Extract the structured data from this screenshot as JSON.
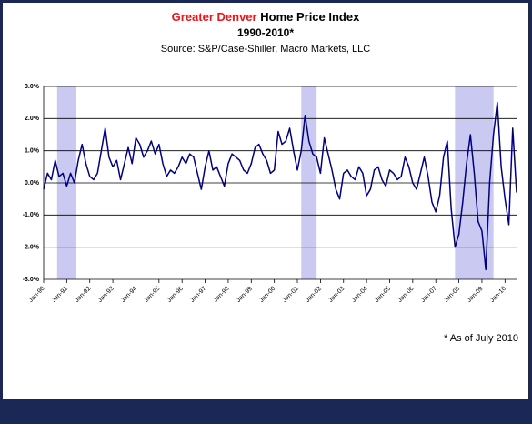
{
  "chart_data": {
    "type": "line",
    "title_highlight": "Greater Denver",
    "title": "Home Price Index",
    "subtitle": "1990-2010*",
    "source": "Source: S&P/Case-Shiller, Macro Markets, LLC",
    "note": "* As of July 2010",
    "title_highlight_color": "#e8151b",
    "x": [
      0,
      2,
      4,
      6,
      8,
      10,
      12,
      14,
      16,
      18,
      20,
      22,
      24,
      26,
      28,
      30,
      32,
      34,
      36,
      38,
      40,
      42,
      44,
      46,
      48,
      50,
      52,
      54,
      56,
      58,
      60,
      62,
      64,
      66,
      68,
      70,
      72,
      74,
      76,
      78,
      80,
      82,
      84,
      86,
      88,
      90,
      92,
      94,
      96,
      98,
      100,
      102,
      104,
      106,
      108,
      110,
      112,
      114,
      116,
      118,
      120,
      122,
      124,
      126,
      128,
      130,
      132,
      134,
      136,
      138,
      140,
      142,
      144,
      146,
      148,
      150,
      152,
      154,
      156,
      158,
      160,
      162,
      164,
      166,
      168,
      170,
      172,
      174,
      176,
      178,
      180,
      182,
      184,
      186,
      188,
      190,
      192,
      194,
      196,
      198,
      200,
      202,
      204,
      206,
      208,
      210,
      212,
      214,
      216,
      218,
      220,
      222,
      224,
      226,
      228,
      230,
      232,
      234,
      236,
      238,
      240,
      242,
      244,
      246
    ],
    "series": [
      {
        "name": "Greater Denver",
        "color": "#000080",
        "values": [
          -0.2,
          0.3,
          0.1,
          0.7,
          0.2,
          0.3,
          -0.1,
          0.3,
          0.0,
          0.7,
          1.2,
          0.6,
          0.2,
          0.1,
          0.3,
          1.0,
          1.7,
          0.8,
          0.5,
          0.7,
          0.1,
          0.6,
          1.1,
          0.6,
          1.4,
          1.2,
          0.8,
          1.0,
          1.3,
          0.9,
          1.2,
          0.6,
          0.2,
          0.4,
          0.3,
          0.5,
          0.8,
          0.6,
          0.9,
          0.8,
          0.3,
          -0.2,
          0.5,
          1.0,
          0.4,
          0.5,
          0.2,
          -0.1,
          0.6,
          0.9,
          0.8,
          0.7,
          0.4,
          0.3,
          0.6,
          1.1,
          1.2,
          0.9,
          0.7,
          0.3,
          0.4,
          1.6,
          1.2,
          1.3,
          1.7,
          1.0,
          0.4,
          1.0,
          2.1,
          1.3,
          0.9,
          0.8,
          0.3,
          1.4,
          0.9,
          0.4,
          -0.2,
          -0.5,
          0.3,
          0.4,
          0.2,
          0.1,
          0.5,
          0.3,
          -0.4,
          -0.2,
          0.4,
          0.5,
          0.1,
          -0.1,
          0.4,
          0.3,
          0.1,
          0.2,
          0.8,
          0.5,
          0.0,
          -0.2,
          0.3,
          0.8,
          0.2,
          -0.6,
          -0.9,
          -0.4,
          0.8,
          1.3,
          -0.8,
          -2.0,
          -1.6,
          -0.6,
          0.6,
          1.5,
          0.3,
          -1.2,
          -1.5,
          -2.7,
          0.0,
          1.5,
          2.5,
          0.5,
          -0.5,
          -1.3,
          1.7,
          -0.3
        ]
      }
    ],
    "shaded_ranges": [
      [
        7,
        17
      ],
      [
        134,
        142
      ],
      [
        214,
        234
      ]
    ],
    "shade_color": "#c9c9f2",
    "xlim": [
      0,
      246
    ],
    "xticks": [
      {
        "value": 0,
        "label": "Jan-90"
      },
      {
        "value": 12,
        "label": "Jan-91"
      },
      {
        "value": 24,
        "label": "Jan-92"
      },
      {
        "value": 36,
        "label": "Jan-93"
      },
      {
        "value": 48,
        "label": "Jan-94"
      },
      {
        "value": 60,
        "label": "Jan-95"
      },
      {
        "value": 72,
        "label": "Jan-96"
      },
      {
        "value": 84,
        "label": "Jan-97"
      },
      {
        "value": 96,
        "label": "Jan-98"
      },
      {
        "value": 108,
        "label": "Jan-99"
      },
      {
        "value": 120,
        "label": "Jan-00"
      },
      {
        "value": 132,
        "label": "Jan-01"
      },
      {
        "value": 144,
        "label": "Jan-02"
      },
      {
        "value": 156,
        "label": "Jan-03"
      },
      {
        "value": 168,
        "label": "Jan-04"
      },
      {
        "value": 180,
        "label": "Jan-05"
      },
      {
        "value": 192,
        "label": "Jan-06"
      },
      {
        "value": 204,
        "label": "Jan-07"
      },
      {
        "value": 216,
        "label": "Jan-08"
      },
      {
        "value": 228,
        "label": "Jan-09"
      },
      {
        "value": 240,
        "label": "Jan-10"
      }
    ],
    "ylim": [
      -3,
      3
    ],
    "yticks": [
      {
        "value": -3,
        "label": "-3.0%"
      },
      {
        "value": -2,
        "label": "-2.0%"
      },
      {
        "value": -1,
        "label": "-1.0%"
      },
      {
        "value": 0,
        "label": "0.0%"
      },
      {
        "value": 1,
        "label": "1.0%"
      },
      {
        "value": 2,
        "label": "2.0%"
      },
      {
        "value": 3,
        "label": "3.0%"
      }
    ],
    "grid": true
  }
}
